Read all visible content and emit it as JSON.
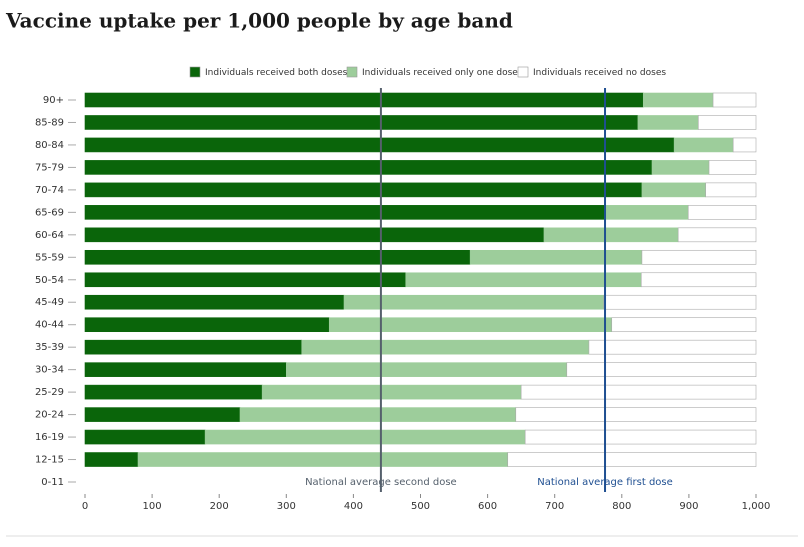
{
  "chart_data": {
    "type": "stacked-bar-horizontal",
    "title": "Vaccine uptake per 1,000 people by age band",
    "categories": [
      "90+",
      "85-89",
      "80-84",
      "75-79",
      "70-74",
      "65-69",
      "60-64",
      "55-59",
      "50-54",
      "45-49",
      "40-44",
      "35-39",
      "30-34",
      "25-29",
      "20-24",
      "16-19",
      "12-15",
      "0-11"
    ],
    "series": [
      {
        "name": "Individuals received both doses",
        "color": "#0a650a",
        "values": [
          832,
          824,
          878,
          845,
          830,
          776,
          684,
          574,
          478,
          386,
          364,
          323,
          300,
          264,
          231,
          179,
          79,
          null
        ]
      },
      {
        "name": "Individuals received only one dose",
        "color": "#9dcd9b",
        "values": [
          104,
          90,
          88,
          85,
          95,
          123,
          200,
          256,
          351,
          387,
          421,
          428,
          418,
          386,
          411,
          477,
          551,
          null
        ]
      },
      {
        "name": "Individuals received no doses",
        "color": "#ffffff",
        "values": [
          64,
          86,
          34,
          70,
          75,
          101,
          116,
          170,
          171,
          227,
          215,
          249,
          282,
          350,
          358,
          344,
          370,
          null
        ]
      }
    ],
    "xlim": [
      0,
      1000
    ],
    "xticks": [
      0,
      100,
      200,
      300,
      400,
      500,
      600,
      700,
      800,
      900,
      {
        "value": 1000,
        "label": "1,000"
      }
    ],
    "annotations": [
      {
        "text": "National average second dose",
        "value": 441,
        "color": "#55606c"
      },
      {
        "text": "National average first dose",
        "value": 775,
        "color": "#1f4f91"
      }
    ]
  }
}
